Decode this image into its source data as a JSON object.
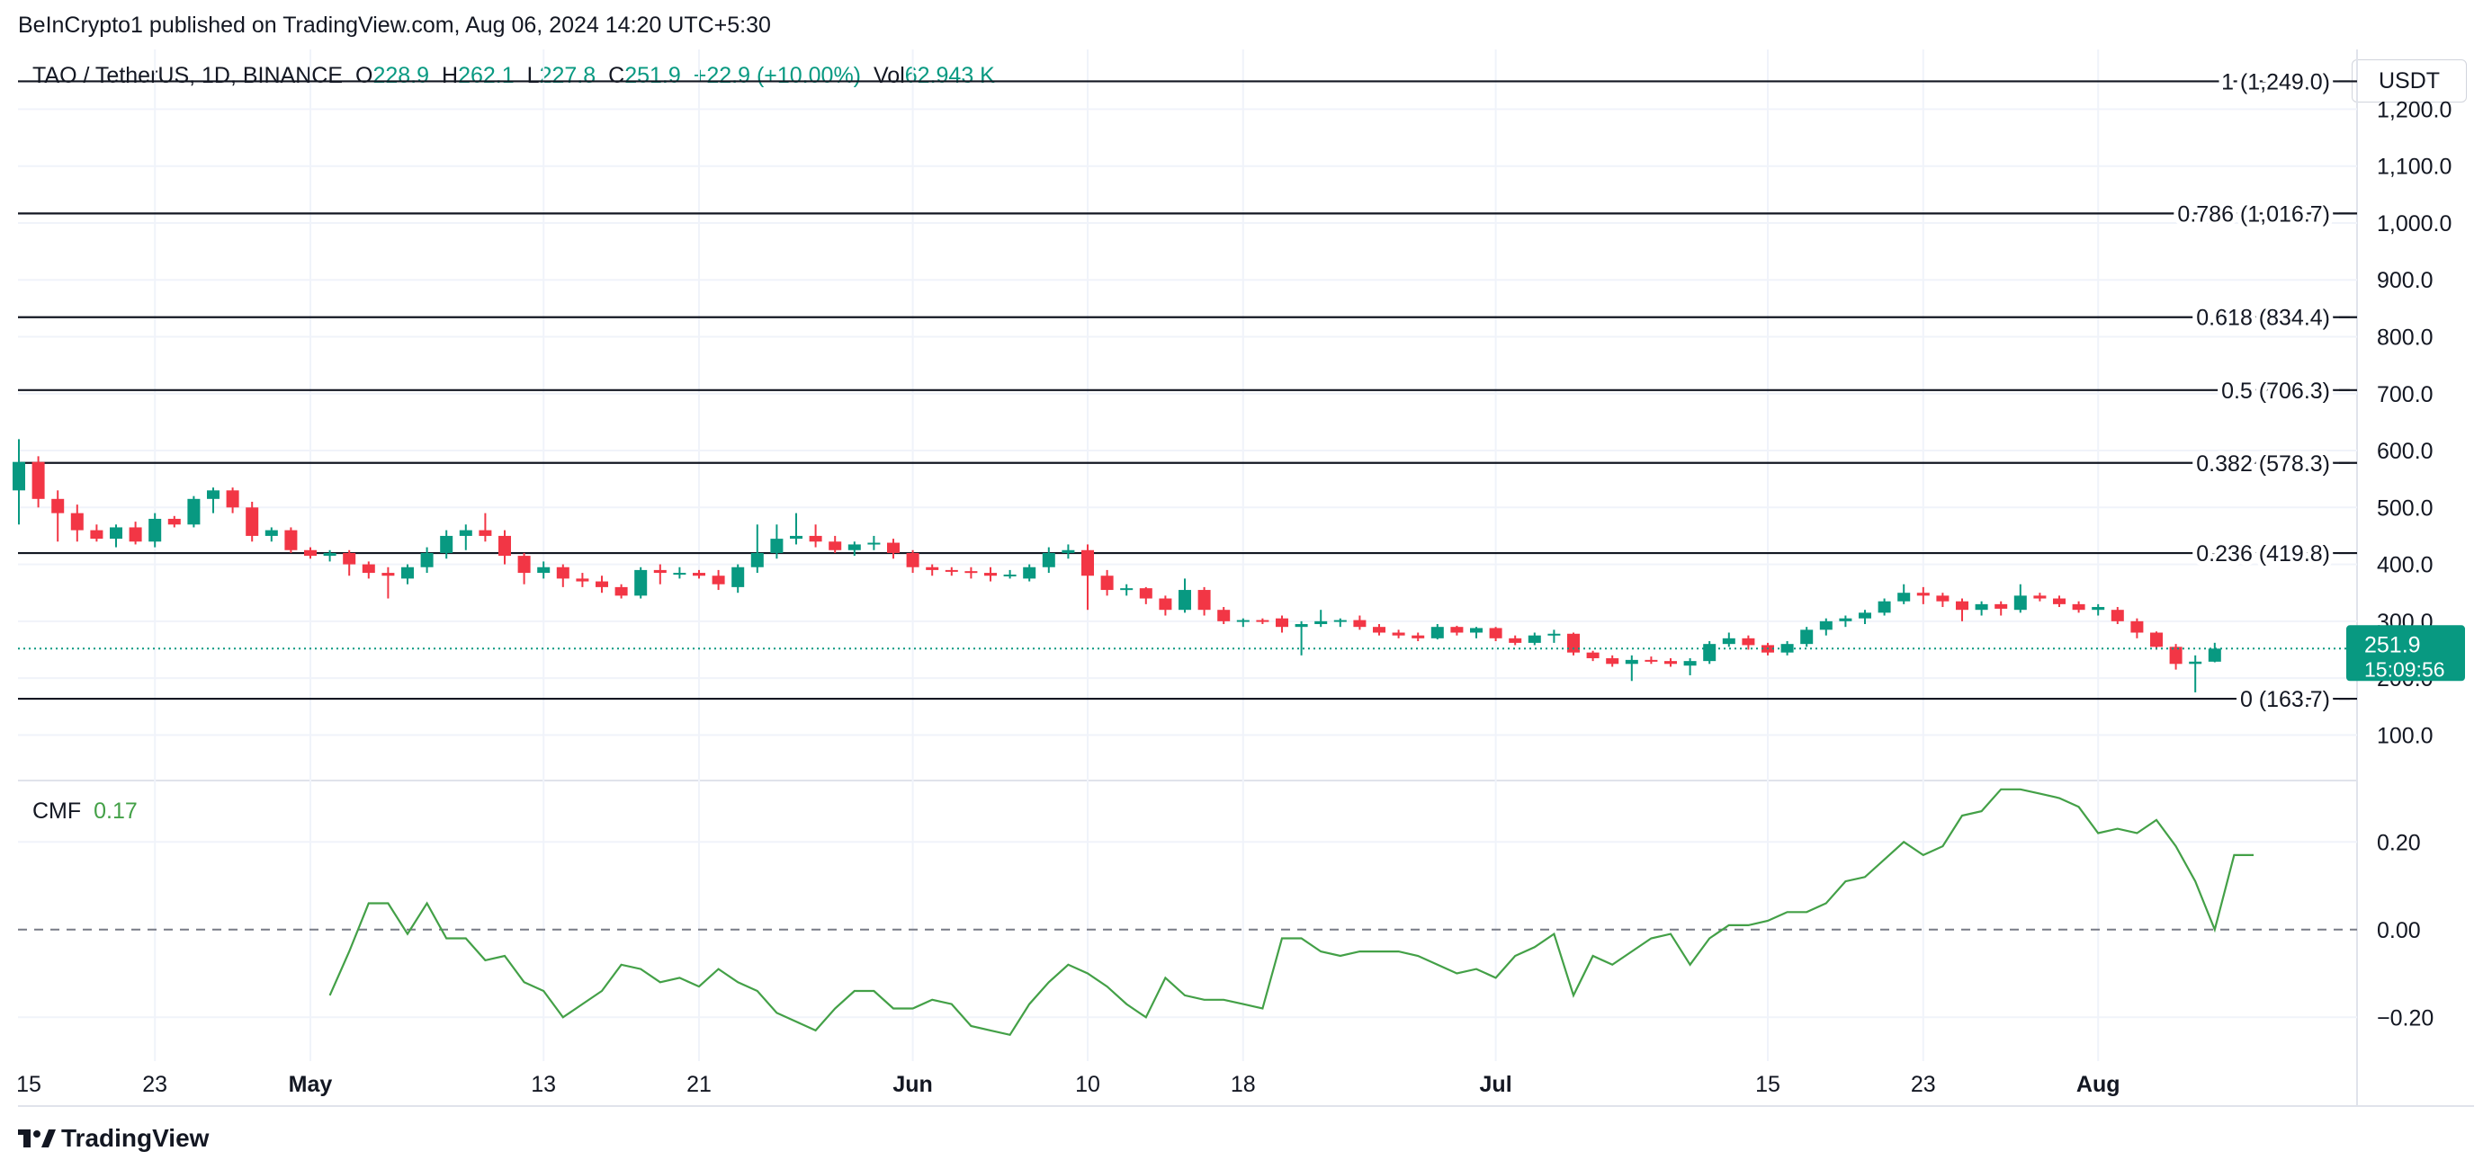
{
  "header": {
    "publisher": "BeInCrypto1 published on TradingView.com, Aug 06, 2024 14:20 UTC+5:30",
    "symbol": "TAO / TetherUS, 1D, BINANCE",
    "open_label": "O",
    "open": "228.9",
    "high_label": "H",
    "high": "262.1",
    "low_label": "L",
    "low": "227.8",
    "close_label": "C",
    "close": "251.9",
    "change": "+22.9 (+10.00%)",
    "vol_label": "Vol",
    "vol": "62.943 K"
  },
  "currency_button": "USDT",
  "brand": "TradingView",
  "colors": {
    "up": "#089981",
    "down": "#f23645",
    "cmf": "#43a047",
    "fib": "#131722",
    "price_tag": "#089981"
  },
  "chart_data": [
    {
      "type": "candlestick",
      "x_ticks": [
        "15",
        "23",
        "May",
        "13",
        "21",
        "Jun",
        "10",
        "18",
        "Jul",
        "15",
        "23",
        "Aug"
      ],
      "x_tick_days": [
        -1,
        7,
        15,
        27,
        35,
        46,
        55,
        63,
        76,
        90,
        98,
        107
      ],
      "y_ticks": [
        "100.0",
        "200.0",
        "300.0",
        "400.0",
        "500.0",
        "600.0",
        "700.0",
        "800.0",
        "900.0",
        "1,000.0",
        "1,100.0",
        "1,200.0"
      ],
      "y_tick_values": [
        100,
        200,
        300,
        400,
        500,
        600,
        700,
        800,
        900,
        1000,
        1100,
        1200
      ],
      "ylim": [
        20,
        1305
      ],
      "fib_levels": [
        {
          "label": "1 (1,249.0)",
          "value": 1249.0
        },
        {
          "label": "0.786 (1,016.7)",
          "value": 1016.7
        },
        {
          "label": "0.618 (834.4)",
          "value": 834.4
        },
        {
          "label": "0.5 (706.3)",
          "value": 706.3
        },
        {
          "label": "0.382 (578.3)",
          "value": 578.3
        },
        {
          "label": "0.236 (419.8)",
          "value": 419.8
        },
        {
          "label": "0 (163.7)",
          "value": 163.7
        }
      ],
      "current_price": {
        "value": 251.9,
        "label": "251.9",
        "countdown": "15:09:56"
      },
      "candles": [
        [
          530,
          620,
          470,
          580
        ],
        [
          580,
          590,
          500,
          515
        ],
        [
          515,
          530,
          440,
          490
        ],
        [
          490,
          505,
          440,
          460
        ],
        [
          460,
          470,
          440,
          445
        ],
        [
          445,
          470,
          430,
          465
        ],
        [
          465,
          475,
          435,
          440
        ],
        [
          440,
          490,
          430,
          480
        ],
        [
          480,
          485,
          465,
          470
        ],
        [
          470,
          520,
          465,
          515
        ],
        [
          515,
          535,
          490,
          530
        ],
        [
          530,
          535,
          490,
          500
        ],
        [
          500,
          510,
          440,
          450
        ],
        [
          450,
          465,
          440,
          460
        ],
        [
          460,
          465,
          420,
          425
        ],
        [
          425,
          430,
          410,
          415
        ],
        [
          415,
          425,
          405,
          420
        ],
        [
          420,
          425,
          380,
          400
        ],
        [
          400,
          405,
          375,
          385
        ],
        [
          385,
          395,
          340,
          380
        ],
        [
          375,
          400,
          365,
          395
        ],
        [
          395,
          430,
          385,
          420
        ],
        [
          420,
          460,
          410,
          450
        ],
        [
          450,
          470,
          425,
          460
        ],
        [
          460,
          490,
          440,
          450
        ],
        [
          450,
          460,
          400,
          415
        ],
        [
          415,
          420,
          365,
          385
        ],
        [
          385,
          405,
          375,
          395
        ],
        [
          395,
          400,
          360,
          375
        ],
        [
          375,
          385,
          360,
          370
        ],
        [
          370,
          380,
          350,
          360
        ],
        [
          360,
          365,
          340,
          345
        ],
        [
          345,
          395,
          340,
          390
        ],
        [
          390,
          400,
          365,
          385
        ],
        [
          385,
          395,
          375,
          385
        ],
        [
          385,
          390,
          375,
          380
        ],
        [
          380,
          390,
          355,
          365
        ],
        [
          360,
          400,
          350,
          395
        ],
        [
          395,
          470,
          385,
          420
        ],
        [
          420,
          470,
          410,
          445
        ],
        [
          445,
          490,
          435,
          450
        ],
        [
          450,
          470,
          430,
          440
        ],
        [
          440,
          450,
          420,
          425
        ],
        [
          425,
          440,
          415,
          435
        ],
        [
          435,
          450,
          425,
          438
        ],
        [
          438,
          445,
          410,
          420
        ],
        [
          420,
          425,
          385,
          395
        ],
        [
          395,
          400,
          380,
          390
        ],
        [
          390,
          395,
          380,
          388
        ],
        [
          388,
          395,
          375,
          385
        ],
        [
          385,
          395,
          370,
          380
        ],
        [
          380,
          390,
          375,
          382
        ],
        [
          375,
          400,
          370,
          395
        ],
        [
          395,
          430,
          385,
          420
        ],
        [
          420,
          435,
          410,
          425
        ],
        [
          425,
          435,
          320,
          380
        ],
        [
          380,
          390,
          345,
          355
        ],
        [
          355,
          365,
          345,
          358
        ],
        [
          358,
          360,
          330,
          340
        ],
        [
          340,
          345,
          310,
          320
        ],
        [
          320,
          375,
          315,
          355
        ],
        [
          355,
          360,
          310,
          320
        ],
        [
          320,
          325,
          295,
          300
        ],
        [
          300,
          305,
          290,
          302
        ],
        [
          302,
          305,
          295,
          300
        ],
        [
          305,
          310,
          280,
          290
        ],
        [
          290,
          300,
          240,
          295
        ],
        [
          295,
          320,
          290,
          300
        ],
        [
          300,
          305,
          290,
          302
        ],
        [
          302,
          310,
          285,
          290
        ],
        [
          290,
          295,
          275,
          280
        ],
        [
          280,
          285,
          270,
          275
        ],
        [
          275,
          280,
          265,
          270
        ],
        [
          270,
          295,
          268,
          290
        ],
        [
          290,
          292,
          275,
          280
        ],
        [
          280,
          290,
          270,
          288
        ],
        [
          288,
          290,
          265,
          270
        ],
        [
          270,
          275,
          258,
          262
        ],
        [
          262,
          280,
          258,
          275
        ],
        [
          275,
          285,
          262,
          278
        ],
        [
          278,
          280,
          240,
          245
        ],
        [
          245,
          248,
          230,
          235
        ],
        [
          235,
          240,
          220,
          225
        ],
        [
          225,
          240,
          195,
          232
        ],
        [
          232,
          238,
          225,
          230
        ],
        [
          230,
          235,
          220,
          225
        ],
        [
          222,
          235,
          205,
          230
        ],
        [
          230,
          265,
          225,
          260
        ],
        [
          260,
          280,
          255,
          270
        ],
        [
          270,
          275,
          250,
          258
        ],
        [
          258,
          262,
          240,
          245
        ],
        [
          245,
          265,
          240,
          260
        ],
        [
          260,
          290,
          255,
          285
        ],
        [
          285,
          305,
          275,
          300
        ],
        [
          300,
          310,
          290,
          305
        ],
        [
          305,
          320,
          295,
          315
        ],
        [
          315,
          340,
          310,
          335
        ],
        [
          335,
          365,
          330,
          350
        ],
        [
          350,
          360,
          330,
          345
        ],
        [
          345,
          350,
          325,
          335
        ],
        [
          335,
          340,
          300,
          320
        ],
        [
          320,
          335,
          310,
          330
        ],
        [
          330,
          335,
          310,
          322
        ],
        [
          320,
          365,
          315,
          345
        ],
        [
          345,
          350,
          335,
          340
        ],
        [
          340,
          345,
          325,
          330
        ],
        [
          330,
          335,
          315,
          320
        ],
        [
          320,
          330,
          310,
          325
        ],
        [
          320,
          325,
          295,
          300
        ],
        [
          300,
          305,
          270,
          280
        ],
        [
          280,
          282,
          250,
          255
        ],
        [
          255,
          260,
          215,
          225
        ],
        [
          225,
          240,
          175,
          229
        ],
        [
          228.9,
          262.1,
          227.8,
          251.9
        ]
      ]
    },
    {
      "type": "line",
      "name": "CMF",
      "value_label": "0.17",
      "y_ticks": [
        "−0.20",
        "0.00",
        "0.20"
      ],
      "y_tick_values": [
        -0.2,
        0.0,
        0.2
      ],
      "ylim": [
        -0.3,
        0.34
      ],
      "x_start_day": 16,
      "values": [
        -0.15,
        -0.05,
        0.06,
        0.06,
        -0.01,
        0.06,
        -0.02,
        -0.02,
        -0.07,
        -0.06,
        -0.12,
        -0.14,
        -0.2,
        -0.17,
        -0.14,
        -0.08,
        -0.09,
        -0.12,
        -0.11,
        -0.13,
        -0.09,
        -0.12,
        -0.14,
        -0.19,
        -0.21,
        -0.23,
        -0.18,
        -0.14,
        -0.14,
        -0.18,
        -0.18,
        -0.16,
        -0.17,
        -0.22,
        -0.23,
        -0.24,
        -0.17,
        -0.12,
        -0.08,
        -0.1,
        -0.13,
        -0.17,
        -0.2,
        -0.11,
        -0.15,
        -0.16,
        -0.16,
        -0.17,
        -0.18,
        -0.02,
        -0.02,
        -0.05,
        -0.06,
        -0.05,
        -0.05,
        -0.05,
        -0.06,
        -0.08,
        -0.1,
        -0.09,
        -0.11,
        -0.06,
        -0.04,
        -0.01,
        -0.15,
        -0.06,
        -0.08,
        -0.05,
        -0.02,
        -0.01,
        -0.08,
        -0.02,
        0.01,
        0.01,
        0.02,
        0.04,
        0.04,
        0.06,
        0.11,
        0.12,
        0.16,
        0.2,
        0.17,
        0.19,
        0.26,
        0.27,
        0.32,
        0.32,
        0.31,
        0.3,
        0.28,
        0.22,
        0.23,
        0.22,
        0.25,
        0.19,
        0.11,
        0.0,
        0.17,
        0.17
      ]
    }
  ]
}
